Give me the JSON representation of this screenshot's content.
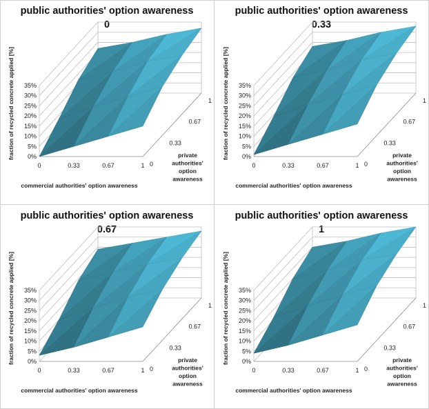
{
  "chart_data": [
    {
      "type": "surface",
      "title": "public authorities' option awareness",
      "subtitle": "0",
      "xlabel": "commercial authorities' option awareness",
      "ylabel": "private authorities' option awareness",
      "zlabel": "fraction of recycled concrete applied [%]",
      "x": [
        "0",
        "0.33",
        "0.67",
        "1"
      ],
      "y": [
        "0",
        "0.33",
        "0.67",
        "1"
      ],
      "zticks": [
        "0%",
        "5%",
        "10%",
        "15%",
        "20%",
        "25%",
        "30%",
        "35%"
      ],
      "zlim": [
        0,
        35
      ],
      "z": [
        [
          0,
          5,
          10,
          15
        ],
        [
          8,
          14,
          19,
          24
        ],
        [
          17,
          21,
          26,
          29
        ],
        [
          22,
          25,
          29,
          32
        ]
      ],
      "color": "#3c8fa5"
    },
    {
      "type": "surface",
      "title": "public authorities' option awareness",
      "subtitle": "0.33",
      "xlabel": "commercial authorities' option awareness",
      "ylabel": "private authorities' option awareness",
      "zlabel": "fraction of recycled concrete applied [%]",
      "x": [
        "0",
        "0.33",
        "0.67",
        "1"
      ],
      "y": [
        "0",
        "0.33",
        "0.67",
        "1"
      ],
      "zticks": [
        "0%",
        "5%",
        "10%",
        "15%",
        "20%",
        "25%",
        "30%",
        "35%"
      ],
      "zlim": [
        0,
        35
      ],
      "z": [
        [
          1,
          6,
          11,
          16
        ],
        [
          9,
          15,
          20,
          25
        ],
        [
          18,
          22,
          27,
          30
        ],
        [
          23,
          26,
          30,
          33
        ]
      ],
      "color": "#3c8fa5"
    },
    {
      "type": "surface",
      "title": "public authorities' option awareness",
      "subtitle": "0.67",
      "xlabel": "commercial authorities' option awareness",
      "ylabel": "private authorities' option awareness",
      "zlabel": "fraction of recycled concrete applied [%]",
      "x": [
        "0",
        "0.33",
        "0.67",
        "1"
      ],
      "y": [
        "0",
        "0.33",
        "0.67",
        "1"
      ],
      "zticks": [
        "0%",
        "5%",
        "10%",
        "15%",
        "20%",
        "25%",
        "30%",
        "35%"
      ],
      "zlim": [
        0,
        35
      ],
      "z": [
        [
          3,
          7,
          12,
          17
        ],
        [
          10,
          16,
          21,
          25
        ],
        [
          19,
          23,
          27,
          30
        ],
        [
          24,
          27,
          30,
          33
        ]
      ],
      "color": "#3c8fa5"
    },
    {
      "type": "surface",
      "title": "public authorities' option awareness",
      "subtitle": "1",
      "xlabel": "commercial authorities' option awareness",
      "ylabel": "private authorities' option awareness",
      "zlabel": "fraction of recycled concrete applied [%]",
      "x": [
        "0",
        "0.33",
        "0.67",
        "1"
      ],
      "y": [
        "0",
        "0.33",
        "0.67",
        "1"
      ],
      "zticks": [
        "0%",
        "5%",
        "10%",
        "15%",
        "20%",
        "25%",
        "30%",
        "35%"
      ],
      "zlim": [
        0,
        35
      ],
      "z": [
        [
          4,
          8,
          13,
          18
        ],
        [
          11,
          17,
          22,
          27
        ],
        [
          20,
          24,
          29,
          32
        ],
        [
          25,
          28,
          32,
          35
        ]
      ],
      "color": "#3c8fa5"
    }
  ]
}
